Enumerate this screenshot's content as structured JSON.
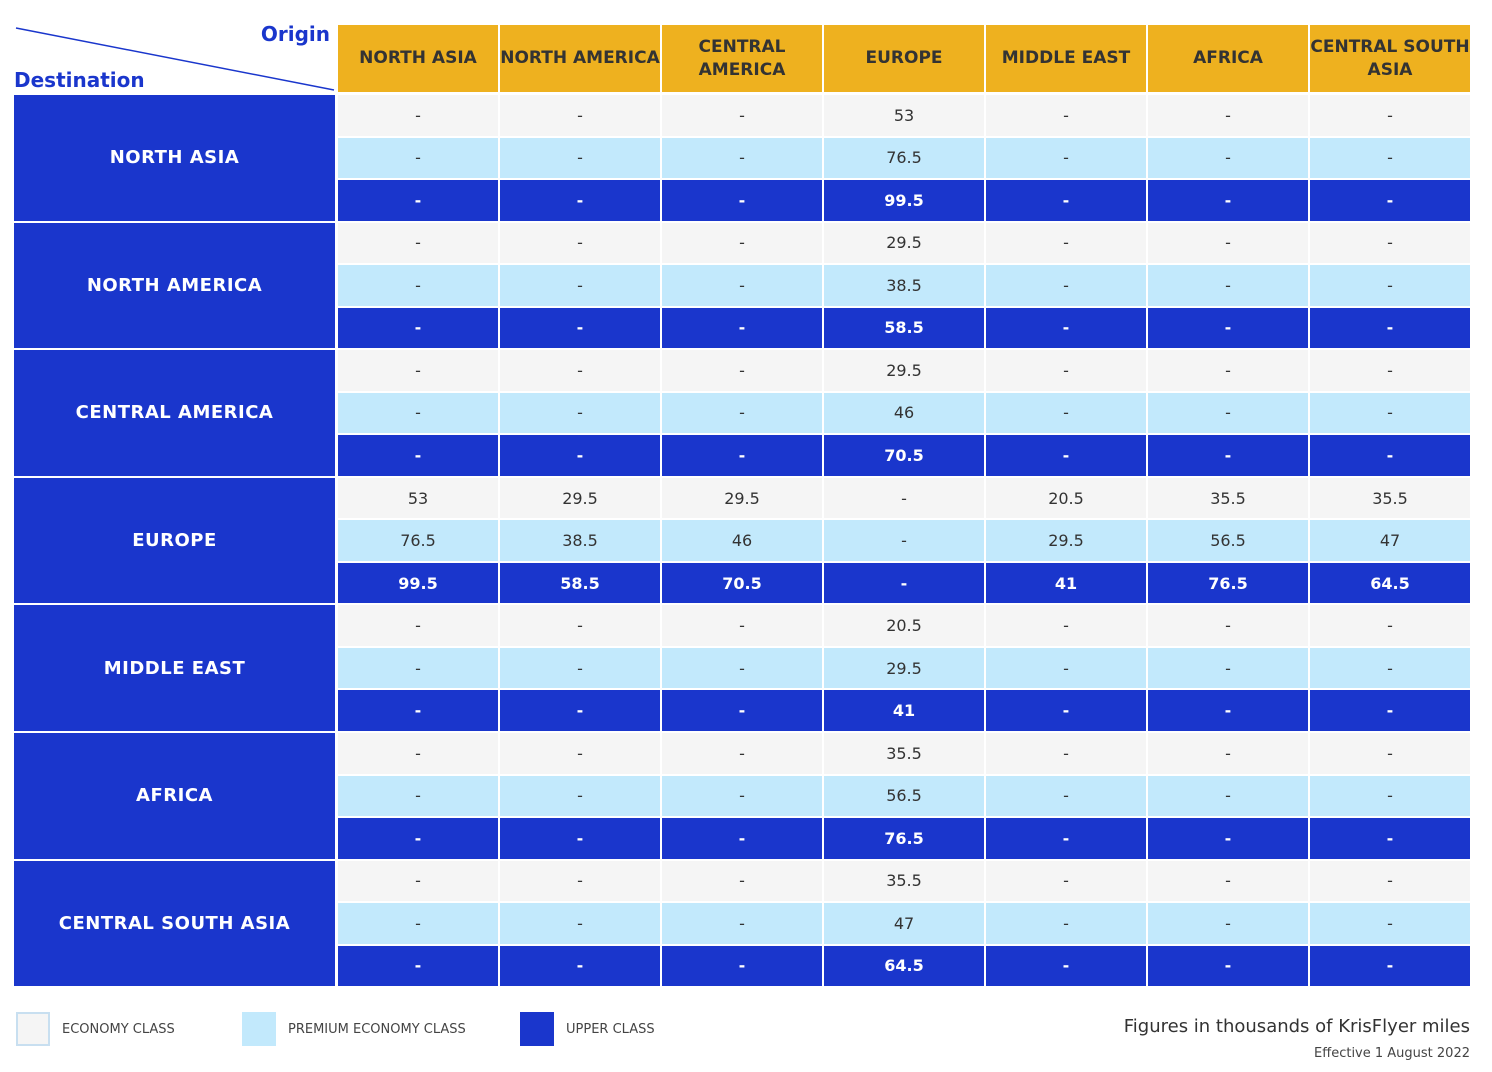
{
  "corner": {
    "origin_label": "Origin",
    "destination_label": "Destination"
  },
  "origins": [
    "NORTH ASIA",
    "NORTH AMERICA",
    "CENTRAL AMERICA",
    "EUROPE",
    "MIDDLE EAST",
    "AFRICA",
    "CENTRAL SOUTH ASIA"
  ],
  "destinations": [
    {
      "name": "NORTH ASIA",
      "rows": [
        [
          "-",
          "-",
          "-",
          "53",
          "-",
          "-",
          "-"
        ],
        [
          "-",
          "-",
          "-",
          "76.5",
          "-",
          "-",
          "-"
        ],
        [
          "-",
          "-",
          "-",
          "99.5",
          "-",
          "-",
          "-"
        ]
      ]
    },
    {
      "name": "NORTH AMERICA",
      "rows": [
        [
          "-",
          "-",
          "-",
          "29.5",
          "-",
          "-",
          "-"
        ],
        [
          "-",
          "-",
          "-",
          "38.5",
          "-",
          "-",
          "-"
        ],
        [
          "-",
          "-",
          "-",
          "58.5",
          "-",
          "-",
          "-"
        ]
      ]
    },
    {
      "name": "CENTRAL AMERICA",
      "rows": [
        [
          "-",
          "-",
          "-",
          "29.5",
          "-",
          "-",
          "-"
        ],
        [
          "-",
          "-",
          "-",
          "46",
          "-",
          "-",
          "-"
        ],
        [
          "-",
          "-",
          "-",
          "70.5",
          "-",
          "-",
          "-"
        ]
      ]
    },
    {
      "name": "EUROPE",
      "rows": [
        [
          "53",
          "29.5",
          "29.5",
          "-",
          "20.5",
          "35.5",
          "35.5"
        ],
        [
          "76.5",
          "38.5",
          "46",
          "-",
          "29.5",
          "56.5",
          "47"
        ],
        [
          "99.5",
          "58.5",
          "70.5",
          "-",
          "41",
          "76.5",
          "64.5"
        ]
      ]
    },
    {
      "name": "MIDDLE EAST",
      "rows": [
        [
          "-",
          "-",
          "-",
          "20.5",
          "-",
          "-",
          "-"
        ],
        [
          "-",
          "-",
          "-",
          "29.5",
          "-",
          "-",
          "-"
        ],
        [
          "-",
          "-",
          "-",
          "41",
          "-",
          "-",
          "-"
        ]
      ]
    },
    {
      "name": "AFRICA",
      "rows": [
        [
          "-",
          "-",
          "-",
          "35.5",
          "-",
          "-",
          "-"
        ],
        [
          "-",
          "-",
          "-",
          "56.5",
          "-",
          "-",
          "-"
        ],
        [
          "-",
          "-",
          "-",
          "76.5",
          "-",
          "-",
          "-"
        ]
      ]
    },
    {
      "name": "CENTRAL SOUTH ASIA",
      "rows": [
        [
          "-",
          "-",
          "-",
          "35.5",
          "-",
          "-",
          "-"
        ],
        [
          "-",
          "-",
          "-",
          "47",
          "-",
          "-",
          "-"
        ],
        [
          "-",
          "-",
          "-",
          "64.5",
          "-",
          "-",
          "-"
        ]
      ]
    }
  ],
  "legend": [
    {
      "label": "ECONOMY CLASS",
      "color": "#f5f5f5"
    },
    {
      "label": "PREMIUM ECONOMY CLASS",
      "color": "#c2e9fc"
    },
    {
      "label": "UPPER CLASS",
      "color": "#1a36cc"
    }
  ],
  "footer": {
    "note": "Figures in thousands of KrisFlyer miles",
    "effective": "Effective 1 August 2022"
  }
}
